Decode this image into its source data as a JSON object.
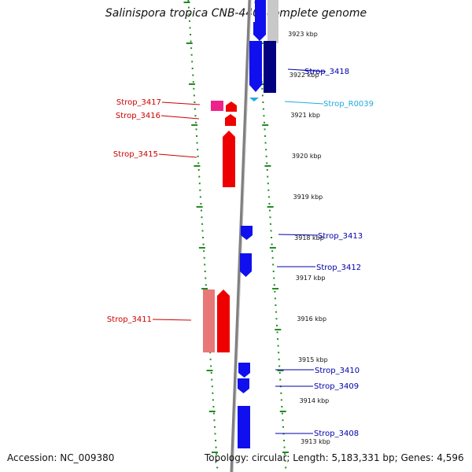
{
  "header": {
    "title": "Salinispora tropica CNB-440, complete genome"
  },
  "footer": {
    "accession": "Accession: NC_009380",
    "topology": "Topology: circular; Length: 5,183,331 bp; Genes: 4,596"
  },
  "colors": {
    "forward_gene": "#1010ee",
    "forward_gene_dark": "#000080",
    "forward_label": "#0000aa",
    "reverse_gene": "#ee0000",
    "reverse_gene_light": "#e87878",
    "reverse_label": "#cc0000",
    "rna_gene": "#22aadd",
    "rna_label": "#22aadd",
    "misc_gene": "#ee2288",
    "grid": "#228b22",
    "backbone": "#808080"
  },
  "icons": {
    "strand_arrow": "arrow-shape-icon",
    "rna": "triangle-icon"
  },
  "ruler": {
    "unit": "kbp",
    "ticks": [
      "3923 kbp",
      "3922 kbp",
      "3921 kbp",
      "3920 kbp",
      "3919 kbp",
      "3918 kbp",
      "3917 kbp",
      "3916 kbp",
      "3915 kbp",
      "3914 kbp",
      "3913 kbp"
    ]
  },
  "genes": {
    "forward": [
      {
        "label": "Strop_3418"
      },
      {
        "label": "Strop_R0039"
      },
      {
        "label": "Strop_3413"
      },
      {
        "label": "Strop_3412"
      },
      {
        "label": "Strop_3410"
      },
      {
        "label": "Strop_3409"
      },
      {
        "label": "Strop_3408"
      }
    ],
    "reverse": [
      {
        "label": "Strop_3417"
      },
      {
        "label": "Strop_3416"
      },
      {
        "label": "Strop_3415"
      },
      {
        "label": "Strop_3411"
      }
    ]
  }
}
